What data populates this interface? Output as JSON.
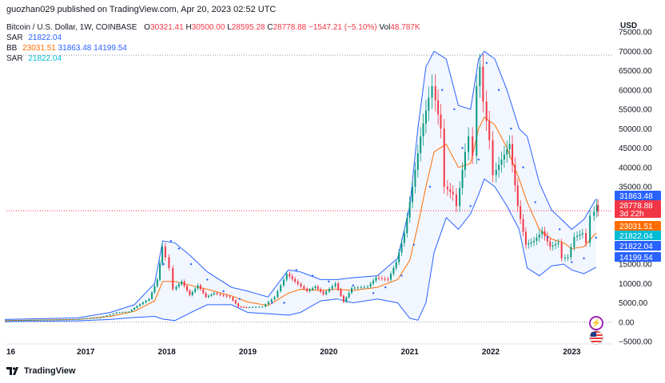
{
  "header": {
    "publisher": "guozhan029 published on TradingView.com, Apr 20, 2023 02:52 UTC"
  },
  "legend": {
    "symbol": "Bitcoin / U.S. Dollar, 1W, COINBASE",
    "ohlc": {
      "o_label": "O",
      "o": "30321.41",
      "h_label": "H",
      "h": "30500.00",
      "l_label": "L",
      "l": "28595.28",
      "c_label": "C",
      "c": "28778.88",
      "chg": "−1547.21 (−5.10%)",
      "vol_label": "Vol",
      "vol": "48.787K"
    },
    "sar1": {
      "label": "SAR",
      "value": "21822.04"
    },
    "bb": {
      "label": "BB",
      "basis": "23031.51",
      "upper": "31863.48",
      "lower": "14199.54"
    },
    "sar2": {
      "label": "SAR",
      "value": "21822.04"
    }
  },
  "price_axis": {
    "currency": "USD"
  },
  "footer": {
    "brand": "TradingView"
  },
  "icons": {
    "lightning": "lightning-icon",
    "flag": "us-flag-icon"
  },
  "chart_data": {
    "type": "line",
    "title": "Bitcoin / U.S. Dollar, 1W, COINBASE",
    "ylim": [
      -5000,
      75000
    ],
    "y_ticks": [
      "75000.00",
      "70000.00",
      "65000.00",
      "60000.00",
      "55000.00",
      "50000.00",
      "45000.00",
      "40000.00",
      "35000.00",
      "30000.00",
      "25000.00",
      "20000.00",
      "15000.00",
      "10000.00",
      "5000.00",
      "0.00",
      "−5000.00"
    ],
    "x_ticks": [
      {
        "label": "16",
        "t": 2016.9
      },
      {
        "label": "2017",
        "t": 2017.0
      },
      {
        "label": "2018",
        "t": 2018.0
      },
      {
        "label": "2019",
        "t": 2019.0
      },
      {
        "label": "2020",
        "t": 2020.0
      },
      {
        "label": "2021",
        "t": 2021.0
      },
      {
        "label": "2022",
        "t": 2022.0
      },
      {
        "label": "2023",
        "t": 2023.0
      }
    ],
    "dotted_levels": [
      69000,
      28778.88,
      0
    ],
    "price_labels": [
      {
        "text": "31863.48",
        "value": 31863.48,
        "color": "#2962ff"
      },
      {
        "text": "28778.88",
        "sub": "3d 22h",
        "value": 28778.88,
        "color": "#f23645"
      },
      {
        "text": "23031.51",
        "value": 23031.51,
        "color": "#ff6d00"
      },
      {
        "text": "21822.04",
        "value": 21822.04,
        "color": "#00bcd4"
      },
      {
        "text": "21822.04",
        "value": 21822.04,
        "color": "#2962ff"
      },
      {
        "text": "14199.54",
        "value": 14199.54,
        "color": "#2962ff"
      }
    ],
    "price_path": [
      [
        2016.0,
        430
      ],
      [
        2016.5,
        650
      ],
      [
        2016.9,
        750
      ],
      [
        2017.0,
        1000
      ],
      [
        2017.2,
        1200
      ],
      [
        2017.4,
        2500
      ],
      [
        2017.55,
        2700
      ],
      [
        2017.65,
        4200
      ],
      [
        2017.8,
        6000
      ],
      [
        2017.9,
        11000
      ],
      [
        2017.96,
        19500
      ],
      [
        2018.05,
        14000
      ],
      [
        2018.1,
        8500
      ],
      [
        2018.2,
        10500
      ],
      [
        2018.3,
        7000
      ],
      [
        2018.4,
        9500
      ],
      [
        2018.5,
        6500
      ],
      [
        2018.6,
        7500
      ],
      [
        2018.8,
        6400
      ],
      [
        2018.9,
        4000
      ],
      [
        2019.0,
        3800
      ],
      [
        2019.2,
        4000
      ],
      [
        2019.35,
        6500
      ],
      [
        2019.5,
        12500
      ],
      [
        2019.6,
        10500
      ],
      [
        2019.75,
        8000
      ],
      [
        2019.85,
        9200
      ],
      [
        2019.95,
        7200
      ],
      [
        2020.1,
        10000
      ],
      [
        2020.2,
        5200
      ],
      [
        2020.3,
        8800
      ],
      [
        2020.5,
        9200
      ],
      [
        2020.6,
        11500
      ],
      [
        2020.75,
        11000
      ],
      [
        2020.85,
        15500
      ],
      [
        2020.95,
        23000
      ],
      [
        2021.05,
        35000
      ],
      [
        2021.15,
        48000
      ],
      [
        2021.25,
        58000
      ],
      [
        2021.3,
        61000
      ],
      [
        2021.4,
        50000
      ],
      [
        2021.45,
        35000
      ],
      [
        2021.55,
        33000
      ],
      [
        2021.6,
        30000
      ],
      [
        2021.7,
        44000
      ],
      [
        2021.75,
        48000
      ],
      [
        2021.8,
        43000
      ],
      [
        2021.85,
        61000
      ],
      [
        2021.88,
        66000
      ],
      [
        2021.93,
        57000
      ],
      [
        2022.0,
        47000
      ],
      [
        2022.05,
        38000
      ],
      [
        2022.15,
        42000
      ],
      [
        2022.25,
        46000
      ],
      [
        2022.35,
        30000
      ],
      [
        2022.45,
        20000
      ],
      [
        2022.55,
        21000
      ],
      [
        2022.65,
        23500
      ],
      [
        2022.75,
        19500
      ],
      [
        2022.85,
        20500
      ],
      [
        2022.9,
        16500
      ],
      [
        2022.97,
        16800
      ],
      [
        2023.05,
        22000
      ],
      [
        2023.15,
        23000
      ],
      [
        2023.2,
        20500
      ],
      [
        2023.25,
        27500
      ],
      [
        2023.3,
        28500
      ],
      [
        2023.32,
        30300
      ],
      [
        2023.33,
        28778.88
      ]
    ],
    "bb_upper": [
      [
        2016.0,
        700
      ],
      [
        2016.9,
        1100
      ],
      [
        2017.3,
        2500
      ],
      [
        2017.6,
        4500
      ],
      [
        2017.85,
        10000
      ],
      [
        2017.95,
        21000
      ],
      [
        2018.1,
        20500
      ],
      [
        2018.3,
        17000
      ],
      [
        2018.5,
        13000
      ],
      [
        2018.8,
        9000
      ],
      [
        2019.0,
        8000
      ],
      [
        2019.25,
        6500
      ],
      [
        2019.5,
        13500
      ],
      [
        2019.65,
        13000
      ],
      [
        2019.9,
        11000
      ],
      [
        2020.1,
        11000
      ],
      [
        2020.3,
        11500
      ],
      [
        2020.6,
        12000
      ],
      [
        2020.85,
        16500
      ],
      [
        2021.0,
        30000
      ],
      [
        2021.1,
        50000
      ],
      [
        2021.2,
        66000
      ],
      [
        2021.3,
        70000
      ],
      [
        2021.45,
        68000
      ],
      [
        2021.6,
        56000
      ],
      [
        2021.75,
        55000
      ],
      [
        2021.85,
        68000
      ],
      [
        2021.92,
        70000
      ],
      [
        2022.05,
        68000
      ],
      [
        2022.2,
        60000
      ],
      [
        2022.35,
        50000
      ],
      [
        2022.45,
        48000
      ],
      [
        2022.6,
        36000
      ],
      [
        2022.75,
        29000
      ],
      [
        2022.9,
        26000
      ],
      [
        2023.0,
        24000
      ],
      [
        2023.15,
        26500
      ],
      [
        2023.3,
        31863.48
      ]
    ],
    "bb_lower": [
      [
        2016.0,
        150
      ],
      [
        2016.9,
        350
      ],
      [
        2017.3,
        700
      ],
      [
        2017.6,
        1200
      ],
      [
        2017.85,
        1500
      ],
      [
        2017.95,
        800
      ],
      [
        2018.1,
        400
      ],
      [
        2018.3,
        2500
      ],
      [
        2018.5,
        4500
      ],
      [
        2018.8,
        4500
      ],
      [
        2019.0,
        2500
      ],
      [
        2019.25,
        2200
      ],
      [
        2019.5,
        1800
      ],
      [
        2019.65,
        2500
      ],
      [
        2019.9,
        5500
      ],
      [
        2020.1,
        6000
      ],
      [
        2020.3,
        5000
      ],
      [
        2020.6,
        6000
      ],
      [
        2020.85,
        5000
      ],
      [
        2021.0,
        1000
      ],
      [
        2021.1,
        500
      ],
      [
        2021.2,
        5000
      ],
      [
        2021.3,
        18000
      ],
      [
        2021.45,
        27000
      ],
      [
        2021.6,
        24000
      ],
      [
        2021.75,
        28000
      ],
      [
        2021.85,
        33000
      ],
      [
        2021.92,
        37000
      ],
      [
        2022.05,
        35000
      ],
      [
        2022.2,
        30000
      ],
      [
        2022.35,
        24000
      ],
      [
        2022.45,
        14000
      ],
      [
        2022.6,
        12000
      ],
      [
        2022.75,
        14500
      ],
      [
        2022.9,
        15000
      ],
      [
        2023.0,
        13500
      ],
      [
        2023.15,
        12500
      ],
      [
        2023.3,
        14199.54
      ]
    ],
    "bb_basis": [
      [
        2016.0,
        400
      ],
      [
        2016.9,
        700
      ],
      [
        2017.3,
        1500
      ],
      [
        2017.6,
        2800
      ],
      [
        2017.85,
        5500
      ],
      [
        2017.95,
        10500
      ],
      [
        2018.1,
        10500
      ],
      [
        2018.3,
        9500
      ],
      [
        2018.5,
        8500
      ],
      [
        2018.8,
        6800
      ],
      [
        2019.0,
        5200
      ],
      [
        2019.25,
        4300
      ],
      [
        2019.5,
        7500
      ],
      [
        2019.65,
        8500
      ],
      [
        2019.9,
        8200
      ],
      [
        2020.1,
        8500
      ],
      [
        2020.3,
        8200
      ],
      [
        2020.6,
        9000
      ],
      [
        2020.85,
        11000
      ],
      [
        2021.0,
        16000
      ],
      [
        2021.1,
        25000
      ],
      [
        2021.2,
        35000
      ],
      [
        2021.3,
        44000
      ],
      [
        2021.45,
        46000
      ],
      [
        2021.6,
        40000
      ],
      [
        2021.75,
        41000
      ],
      [
        2021.85,
        50000
      ],
      [
        2021.92,
        53000
      ],
      [
        2022.05,
        51000
      ],
      [
        2022.2,
        45000
      ],
      [
        2022.35,
        37000
      ],
      [
        2022.45,
        31000
      ],
      [
        2022.6,
        24000
      ],
      [
        2022.75,
        21500
      ],
      [
        2022.9,
        20500
      ],
      [
        2023.0,
        19000
      ],
      [
        2023.15,
        19500
      ],
      [
        2023.3,
        23031.51
      ]
    ],
    "sar_points": [
      [
        2017.96,
        15000
      ],
      [
        2018.05,
        21000
      ],
      [
        2018.15,
        19000
      ],
      [
        2018.3,
        15000
      ],
      [
        2018.5,
        11000
      ],
      [
        2018.7,
        8000
      ],
      [
        2018.9,
        6000
      ],
      [
        2019.3,
        5000
      ],
      [
        2019.45,
        5000
      ],
      [
        2019.6,
        13500
      ],
      [
        2019.8,
        12000
      ],
      [
        2020.0,
        10500
      ],
      [
        2020.3,
        9500
      ],
      [
        2020.55,
        7500
      ],
      [
        2020.7,
        9000
      ],
      [
        2020.9,
        12000
      ],
      [
        2021.05,
        20000
      ],
      [
        2021.25,
        35000
      ],
      [
        2021.4,
        60000
      ],
      [
        2021.55,
        55000
      ],
      [
        2021.65,
        45000
      ],
      [
        2021.75,
        30000
      ],
      [
        2021.85,
        42000
      ],
      [
        2021.95,
        67000
      ],
      [
        2022.1,
        60000
      ],
      [
        2022.25,
        50000
      ],
      [
        2022.4,
        40000
      ],
      [
        2022.55,
        31000
      ],
      [
        2022.7,
        22000
      ],
      [
        2022.85,
        24000
      ],
      [
        2023.0,
        15500
      ],
      [
        2023.15,
        16500
      ],
      [
        2023.3,
        21822.04
      ]
    ]
  }
}
